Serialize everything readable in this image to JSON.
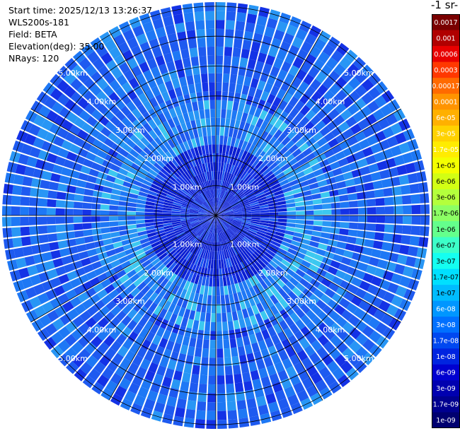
{
  "header": {
    "start_time": "Start time: 2025/12/13 13:26:37",
    "instrument": "WLS200s-181",
    "field": "Field: BETA",
    "elevation": "Elevation(deg): 35.00",
    "nrays": "NRays: 120"
  },
  "colorbar": {
    "title": "-1 sr-",
    "ticks": [
      "0.0017",
      "0.001",
      "0.0006",
      "0.0003",
      "0.00017",
      "0.0001",
      "6e-05",
      "3e-05",
      "1.7e-05",
      "1e-05",
      "6e-06",
      "3e-06",
      "1.7e-06",
      "1e-06",
      "6e-07",
      "3e-07",
      "1.7e-07",
      "1e-07",
      "6e-08",
      "3e-08",
      "1.7e-08",
      "1e-08",
      "6e-09",
      "3e-09",
      "1.7e-09",
      "1e-09"
    ],
    "colors": [
      "#7a0000",
      "#b00000",
      "#e80000",
      "#ff3800",
      "#ff6a00",
      "#ff9400",
      "#ffb000",
      "#ffd200",
      "#ffec00",
      "#f4ff00",
      "#d2ff14",
      "#b4ff3c",
      "#8cff64",
      "#64ff8c",
      "#3cffc8",
      "#14fff0",
      "#00e0ff",
      "#00bcff",
      "#0096ff",
      "#0070ff",
      "#0048f0",
      "#0024e0",
      "#0000d0",
      "#0000b0",
      "#000090",
      "#000070"
    ],
    "dark_text_indices": [
      9,
      10,
      11,
      12,
      13,
      14,
      15,
      16,
      17
    ]
  },
  "ppi": {
    "range_rings_km": [
      "1.00km",
      "2.00km",
      "3.00km",
      "4.00km",
      "5.00km"
    ],
    "field_colors": [
      "#0a1ed2",
      "#1432e6",
      "#1e5af0",
      "#1e78f5",
      "#2896f5",
      "#3cc8f0"
    ]
  }
}
